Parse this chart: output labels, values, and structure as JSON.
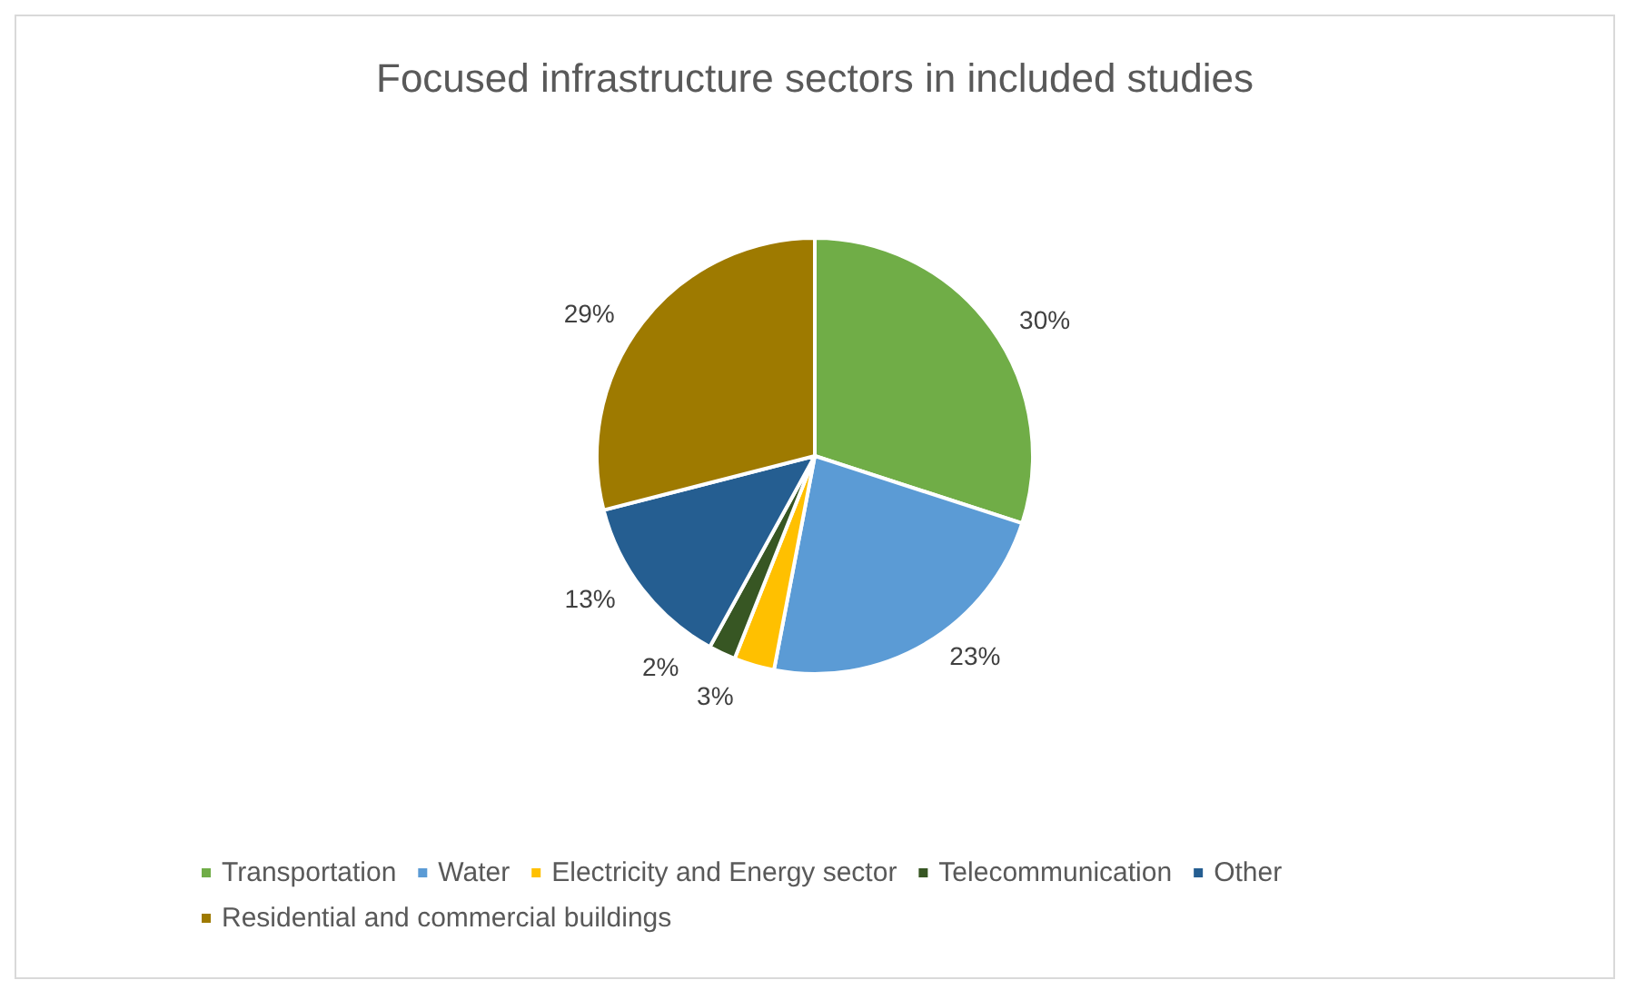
{
  "chart_data": {
    "type": "pie",
    "title": "Focused infrastructure sectors in included studies",
    "categories": [
      "Transportation",
      "Water",
      "Electricity and Energy sector",
      "Telecommunication",
      "Other",
      "Residential and commercial buildings"
    ],
    "values": [
      30,
      23,
      3,
      2,
      13,
      29
    ],
    "value_labels": [
      "30%",
      "23%",
      "3%",
      "2%",
      "13%",
      "29%"
    ],
    "colors": [
      "#70ad47",
      "#5b9bd5",
      "#ffc000",
      "#375623",
      "#255e91",
      "#9e7a00"
    ],
    "legend": "bottom"
  }
}
